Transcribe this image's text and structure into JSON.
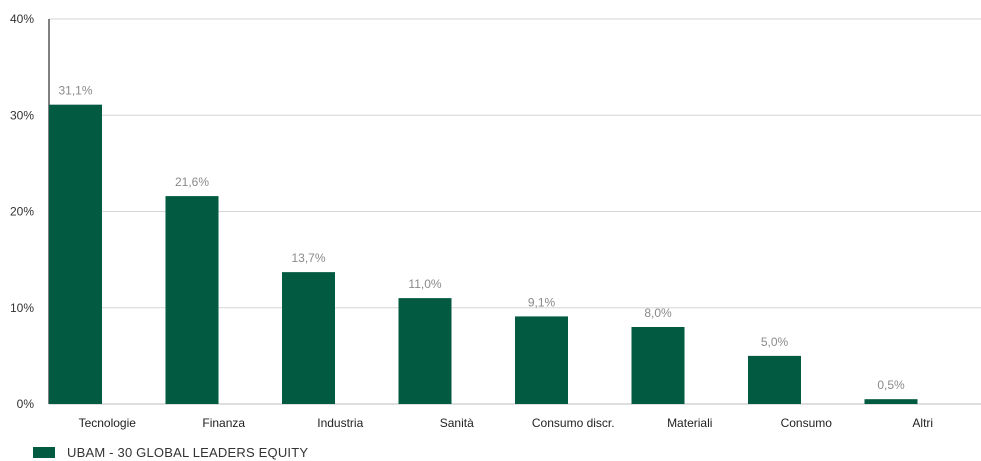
{
  "chart_data": {
    "type": "bar",
    "categories": [
      "Tecnologie",
      "Finanza",
      "Industria",
      "Sanità",
      "Consumo discr.",
      "Materiali",
      "Consumo",
      "Altri"
    ],
    "series": [
      {
        "name": "UBAM - 30 GLOBAL LEADERS EQUITY",
        "values": [
          31.1,
          21.6,
          13.7,
          11.0,
          9.1,
          8.0,
          5.0,
          0.5
        ],
        "value_labels": [
          "31,1%",
          "21,6%",
          "13,7%",
          "11,0%",
          "9,1%",
          "8,0%",
          "5,0%",
          "0,5%"
        ],
        "color": "#025a40"
      }
    ],
    "yticks": [
      0,
      10,
      20,
      30,
      40
    ],
    "ytick_labels": [
      "0%",
      "10%",
      "20%",
      "30%",
      "40%"
    ],
    "ylim": [
      0,
      40
    ],
    "grid": true,
    "legend_position": "bottom-left",
    "title": "",
    "xlabel": "",
    "ylabel": ""
  },
  "legend": {
    "label": "UBAM - 30 GLOBAL LEADERS EQUITY",
    "color": "#025a40"
  }
}
